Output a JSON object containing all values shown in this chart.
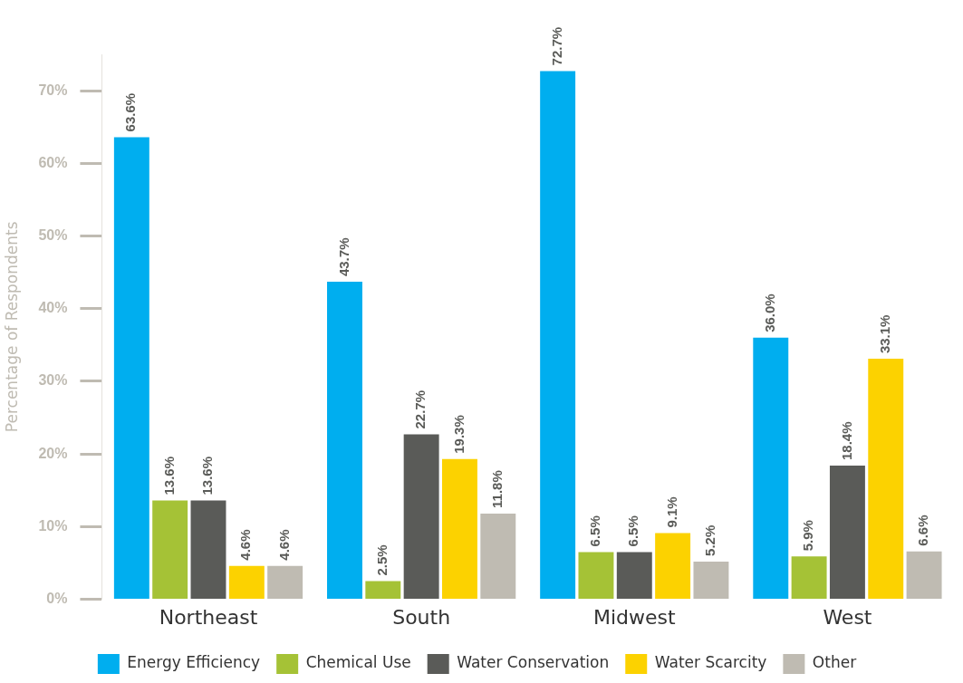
{
  "chart_data": {
    "type": "bar",
    "ylabel": "Percentage of Respondents",
    "categories": [
      "Northeast",
      "South",
      "Midwest",
      "West"
    ],
    "series": [
      {
        "name": "Energy Efficiency",
        "color": "#00aeef",
        "values": [
          63.6,
          43.7,
          72.7,
          36.0
        ],
        "value_labels": [
          "63.6%",
          "43.7%",
          "72.7%",
          "36.0%"
        ]
      },
      {
        "name": "Chemical Use",
        "color": "#a5c236",
        "values": [
          13.6,
          2.5,
          6.5,
          5.9
        ],
        "value_labels": [
          "13.6%",
          "2.5%",
          "6.5%",
          "5.9%"
        ]
      },
      {
        "name": "Water Conservation",
        "color": "#5a5b58",
        "values": [
          13.6,
          22.7,
          6.5,
          18.4
        ],
        "value_labels": [
          "13.6%",
          "22.7%",
          "6.5%",
          "18.4%"
        ]
      },
      {
        "name": "Water Scarcity",
        "color": "#fcd200",
        "values": [
          4.6,
          19.3,
          9.1,
          33.1
        ],
        "value_labels": [
          "4.6%",
          "19.3%",
          "9.1%",
          "33.1%"
        ]
      },
      {
        "name": "Other",
        "color": "#bfbbb2",
        "values": [
          4.6,
          11.8,
          5.2,
          6.6
        ],
        "value_labels": [
          "4.6%",
          "11.8%",
          "5.2%",
          "6.6%"
        ]
      }
    ],
    "ylim": [
      0,
      75
    ],
    "yticks": [
      {
        "value": 0,
        "label": "0%"
      },
      {
        "value": 10,
        "label": "10%"
      },
      {
        "value": 20,
        "label": "20%"
      },
      {
        "value": 30,
        "label": "30%"
      },
      {
        "value": 40,
        "label": "40%"
      },
      {
        "value": 50,
        "label": "50%"
      },
      {
        "value": 60,
        "label": "60%"
      },
      {
        "value": 70,
        "label": "70%"
      }
    ],
    "grid": false,
    "legend": "bottom"
  }
}
